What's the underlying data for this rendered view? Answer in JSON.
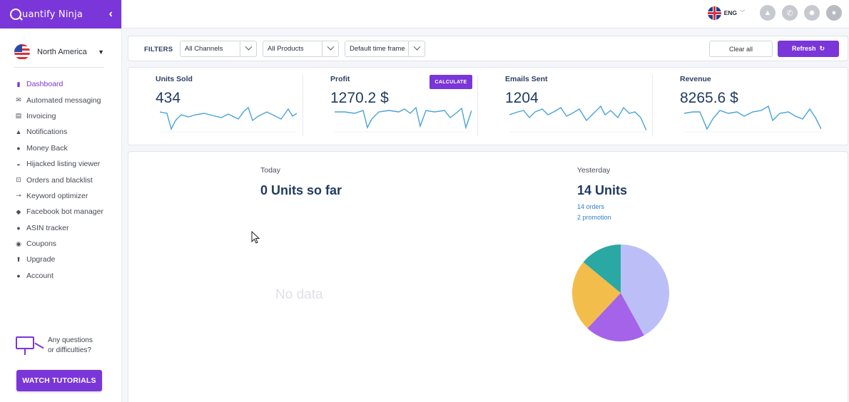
{
  "app": {
    "brand_name": "uantify Ninja",
    "brand_color": "#7a36d9"
  },
  "sidebar": {
    "region": "North America",
    "items": [
      {
        "label": "Dashboard",
        "icon": "bar-chart-icon",
        "active": true
      },
      {
        "label": "Automated messaging",
        "icon": "envelope-icon"
      },
      {
        "label": "Invoicing",
        "icon": "invoice-icon"
      },
      {
        "label": "Notifications",
        "icon": "bell-icon"
      },
      {
        "label": "Money Back",
        "icon": "dollar-icon"
      },
      {
        "label": "Hijacked listing viewer",
        "icon": "glasses-icon"
      },
      {
        "label": "Orders and blacklist",
        "icon": "cart-icon"
      },
      {
        "label": "Keyword optimizer",
        "icon": "key-icon"
      },
      {
        "label": "Facebook bot manager",
        "icon": "chat-icon"
      },
      {
        "label": "ASIN tracker",
        "icon": "dollar-icon"
      },
      {
        "label": "Coupons",
        "icon": "coupon-icon"
      },
      {
        "label": "Upgrade",
        "icon": "arrow-up-icon"
      },
      {
        "label": "Account",
        "icon": "user-icon"
      }
    ],
    "help_line1": "Any questions",
    "help_line2": "or difficulties?",
    "tutorials_button": "WATCH TUTORIALS"
  },
  "topbar": {
    "language": "ENG"
  },
  "filters": {
    "label": "FILTERS",
    "channels": "All Channels",
    "products": "All Products",
    "timeframe": "Default time frame",
    "clear_label": "Clear all",
    "refresh_label": "Refresh"
  },
  "stats": [
    {
      "title": "Units Sold",
      "value": "434"
    },
    {
      "title": "Profit",
      "value": "1270.2 $",
      "action": "CALCULATE"
    },
    {
      "title": "Emails Sent",
      "value": "1204"
    },
    {
      "title": "Revenue",
      "value": "8265.6 $"
    }
  ],
  "today": {
    "label": "Today",
    "value": "0 Units so far",
    "empty": "No data"
  },
  "yesterday": {
    "label": "Yesterday",
    "value": "14 Units",
    "orders": "14 orders",
    "promotion": "2 promotion"
  },
  "chart_data": {
    "type": "pie",
    "slices": [
      {
        "value": 42,
        "color": "#bcbff7"
      },
      {
        "value": 20,
        "color": "#a463e8"
      },
      {
        "value": 24,
        "color": "#f2bd4b"
      },
      {
        "value": 14,
        "color": "#2aa8a3"
      }
    ]
  }
}
